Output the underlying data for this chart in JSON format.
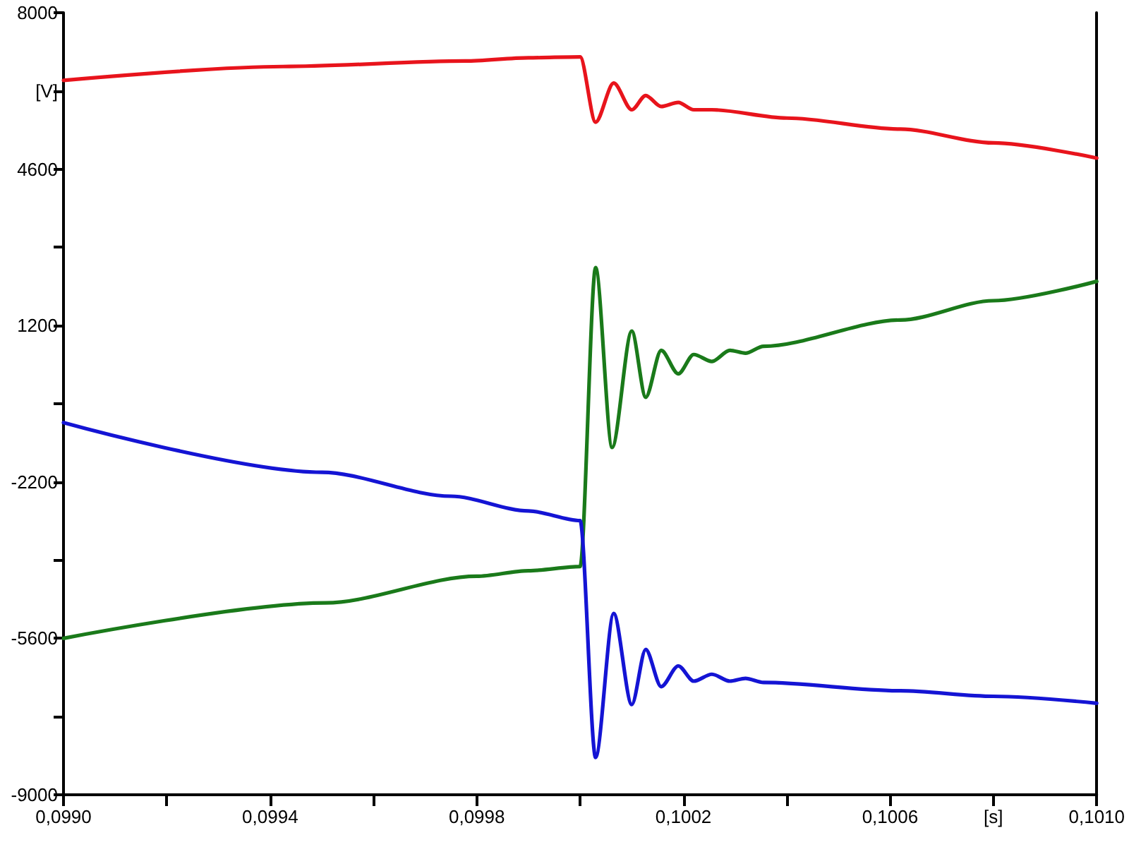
{
  "chart_data": {
    "type": "line",
    "series": [
      {
        "color": "#e8141c",
        "x": [
          0.099,
          0.099425,
          0.099778,
          0.0999,
          0.1,
          0.10003,
          0.100065,
          0.1001,
          0.100127,
          0.100157,
          0.10019,
          0.10022,
          0.100255,
          0.1004,
          0.10062,
          0.1008,
          0.101
        ],
        "values": [
          6530,
          6830,
          6950,
          7020,
          7040,
          5620,
          6470,
          5890,
          6200,
          5960,
          6050,
          5890,
          5890,
          5710,
          5470,
          5170,
          4840
        ]
      },
      {
        "color": "#1a7a1a",
        "x": [
          0.099,
          0.099507,
          0.0998,
          0.0999,
          0.1,
          0.10003,
          0.100062,
          0.1001,
          0.100127,
          0.100157,
          0.10019,
          0.10022,
          0.100255,
          0.10029,
          0.10032,
          0.100355,
          0.10062,
          0.1008,
          0.101
        ],
        "values": [
          -5600,
          -4830,
          -4250,
          -4130,
          -4040,
          2460,
          -1450,
          1080,
          -360,
          660,
          150,
          570,
          420,
          660,
          600,
          750,
          1320,
          1740,
          2160
        ]
      },
      {
        "color": "#1414d4",
        "x": [
          0.099,
          0.0995,
          0.09975,
          0.0999,
          0.1,
          0.10003,
          0.100065,
          0.1001,
          0.100127,
          0.100157,
          0.10019,
          0.10022,
          0.100255,
          0.10029,
          0.10032,
          0.100355,
          0.10062,
          0.1008,
          0.101
        ],
        "values": [
          -910,
          -1990,
          -2510,
          -2830,
          -3040,
          -8190,
          -5060,
          -7040,
          -5840,
          -6650,
          -6200,
          -6530,
          -6380,
          -6530,
          -6470,
          -6560,
          -6740,
          -6860,
          -7010
        ]
      }
    ],
    "xlim": [
      0.099,
      0.101
    ],
    "xticks": [
      {
        "value": 0.099,
        "label": "0,0990"
      },
      {
        "value": 0.0992,
        "label": null
      },
      {
        "value": 0.0994,
        "label": "0,0994"
      },
      {
        "value": 0.0996,
        "label": null
      },
      {
        "value": 0.0998,
        "label": "0,0998"
      },
      {
        "value": 0.1,
        "label": null
      },
      {
        "value": 0.1002,
        "label": "0,1002"
      },
      {
        "value": 0.1004,
        "label": null
      },
      {
        "value": 0.1006,
        "label": "0,1006"
      },
      {
        "value": 0.1008,
        "label": "[s]"
      },
      {
        "value": 0.101,
        "label": "0,1010"
      }
    ],
    "ylim": [
      -9000,
      8000
    ],
    "yticks": [
      -9000,
      {
        "value": -7300,
        "label": null
      },
      -5600,
      {
        "value": -3900,
        "label": null
      },
      -2200,
      {
        "value": -500,
        "label": null
      },
      1200,
      {
        "value": 2900,
        "label": null
      },
      4600,
      {
        "value": 6300,
        "label": "[V]"
      },
      8000
    ],
    "grid": false,
    "marker": "none",
    "line_style": "solid"
  }
}
